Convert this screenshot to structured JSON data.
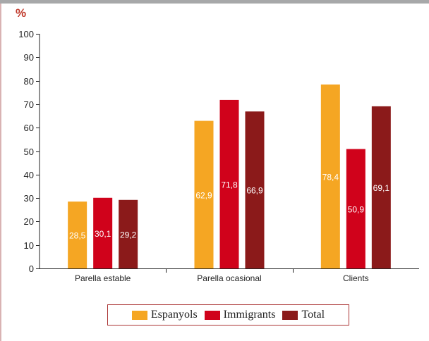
{
  "unit": "%",
  "chart_data": {
    "type": "bar",
    "categories": [
      "Parella estable",
      "Parella ocasional",
      "Clients"
    ],
    "series": [
      {
        "name": "Espanyols",
        "color": "#f5a623",
        "values": [
          28.5,
          62.9,
          78.4
        ],
        "labels": [
          "28,5",
          "62,9",
          "78,4"
        ]
      },
      {
        "name": "Immigrants",
        "color": "#d0021b",
        "values": [
          30.1,
          71.8,
          50.9
        ],
        "labels": [
          "30,1",
          "71,8",
          "50,9"
        ]
      },
      {
        "name": "Total",
        "color": "#8b1a1a",
        "values": [
          29.2,
          66.9,
          69.1
        ],
        "labels": [
          "29,2",
          "66,9",
          "69,1"
        ]
      }
    ],
    "ylim": [
      0,
      100
    ],
    "yticks": [
      "0",
      "10",
      "20",
      "30",
      "40",
      "50",
      "60",
      "70",
      "80",
      "90",
      "100"
    ],
    "legend_position": "bottom",
    "grid": false
  }
}
